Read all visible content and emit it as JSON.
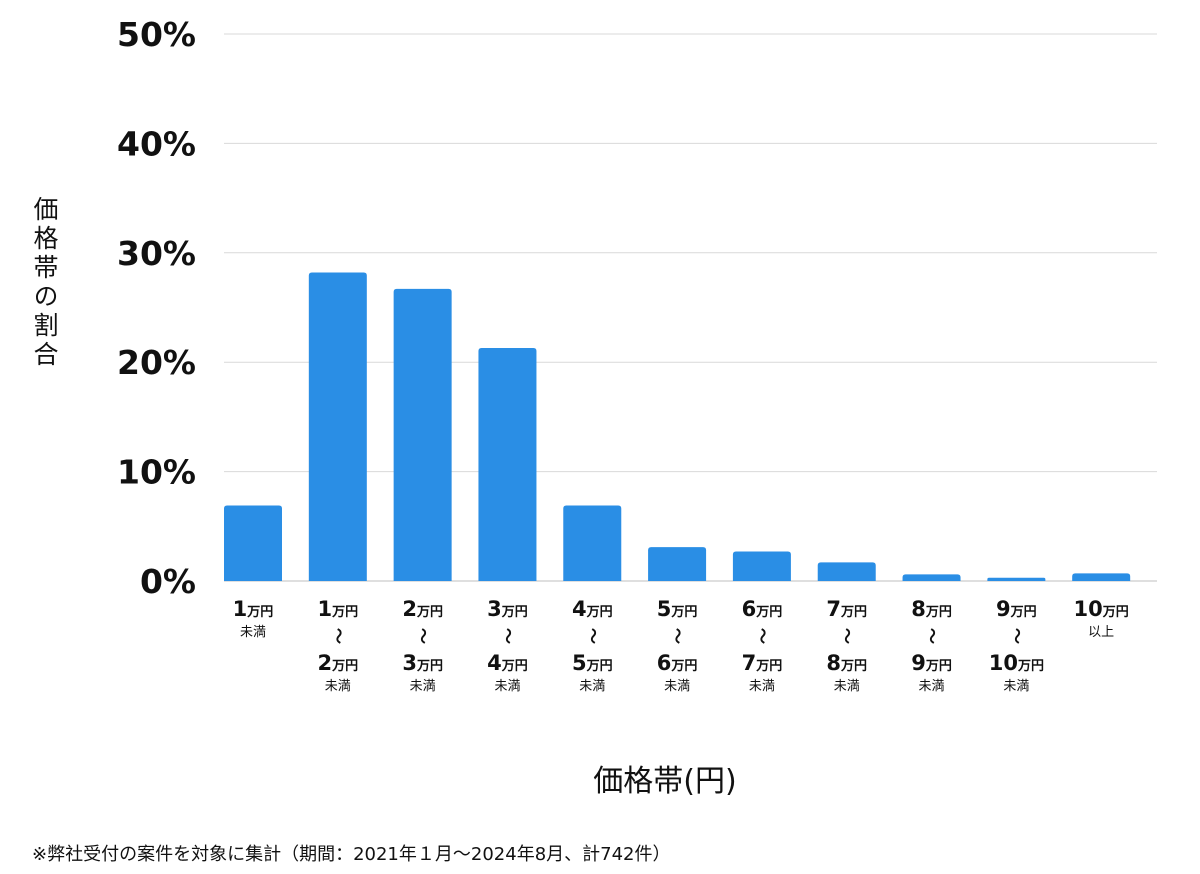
{
  "chart_data": {
    "type": "bar",
    "ylabel": "価格帯の割合",
    "xlabel": "価格帯(円)",
    "y_unit": "%",
    "ylim": [
      0,
      50
    ],
    "yticks": [
      0,
      10,
      20,
      30,
      40,
      50
    ],
    "ytick_labels": [
      "0%",
      "10%",
      "20%",
      "30%",
      "40%",
      "50%"
    ],
    "grid": true,
    "tilde": "〜",
    "categories": [
      {
        "lines": [
          {
            "num": "1",
            "unit": "万円"
          }
        ],
        "note": "未満"
      },
      {
        "lines": [
          {
            "num": "1",
            "unit": "万円"
          },
          {
            "num": "2",
            "unit": "万円"
          }
        ],
        "note": "未満"
      },
      {
        "lines": [
          {
            "num": "2",
            "unit": "万円"
          },
          {
            "num": "3",
            "unit": "万円"
          }
        ],
        "note": "未満"
      },
      {
        "lines": [
          {
            "num": "3",
            "unit": "万円"
          },
          {
            "num": "4",
            "unit": "万円"
          }
        ],
        "note": "未満"
      },
      {
        "lines": [
          {
            "num": "4",
            "unit": "万円"
          },
          {
            "num": "5",
            "unit": "万円"
          }
        ],
        "note": "未満"
      },
      {
        "lines": [
          {
            "num": "5",
            "unit": "万円"
          },
          {
            "num": "6",
            "unit": "万円"
          }
        ],
        "note": "未満"
      },
      {
        "lines": [
          {
            "num": "6",
            "unit": "万円"
          },
          {
            "num": "7",
            "unit": "万円"
          }
        ],
        "note": "未満"
      },
      {
        "lines": [
          {
            "num": "7",
            "unit": "万円"
          },
          {
            "num": "8",
            "unit": "万円"
          }
        ],
        "note": "未満"
      },
      {
        "lines": [
          {
            "num": "8",
            "unit": "万円"
          },
          {
            "num": "9",
            "unit": "万円"
          }
        ],
        "note": "未満"
      },
      {
        "lines": [
          {
            "num": "9",
            "unit": "万円"
          },
          {
            "num": "10",
            "unit": "万円"
          }
        ],
        "note": "未満"
      },
      {
        "lines": [
          {
            "num": "10",
            "unit": "万円"
          }
        ],
        "note": "以上"
      }
    ],
    "values": [
      6.9,
      28.2,
      26.7,
      21.3,
      6.9,
      3.1,
      2.7,
      1.7,
      0.6,
      0.3,
      0.7
    ],
    "bar_color": "#2a8ee5",
    "grid_color": "#d9d9d9"
  },
  "footnote": "※弊社受付の案件を対象に集計（期間：2021年１月〜2024年8月、計742件）"
}
